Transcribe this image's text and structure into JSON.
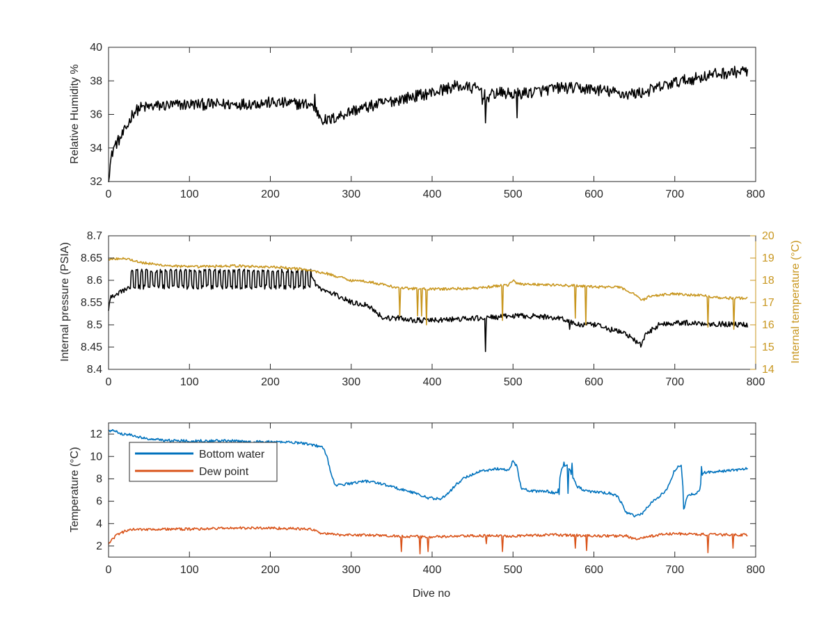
{
  "figure": {
    "xlabel_bottom": "Dive no"
  },
  "colors": {
    "black": "#000000",
    "gold": "#C8961E",
    "blue": "#0072BD",
    "orange": "#D95319",
    "axis": "#262626"
  },
  "chart_data": [
    {
      "type": "line",
      "ylabel": "Relative Humidity %",
      "xlim": [
        0,
        800
      ],
      "ylim": [
        32,
        40
      ],
      "xticks": [
        0,
        100,
        200,
        300,
        400,
        500,
        600,
        700,
        800
      ],
      "yticks": [
        32,
        34,
        36,
        38,
        40
      ],
      "grid": false,
      "series": [
        {
          "color": "#000000",
          "noise": 0.35,
          "points": [
            [
              0,
              32.3
            ],
            [
              3,
              33.3
            ],
            [
              6,
              34.0
            ],
            [
              10,
              34.3
            ],
            [
              15,
              34.6
            ],
            [
              20,
              35.0
            ],
            [
              25,
              35.5
            ],
            [
              30,
              36.1
            ],
            [
              40,
              36.4
            ],
            [
              60,
              36.5
            ],
            [
              100,
              36.6
            ],
            [
              150,
              36.6
            ],
            [
              200,
              36.7
            ],
            [
              250,
              36.6
            ],
            [
              262,
              35.9
            ],
            [
              270,
              35.6
            ],
            [
              280,
              35.8
            ],
            [
              300,
              36.2
            ],
            [
              350,
              36.8
            ],
            [
              400,
              37.3
            ],
            [
              430,
              37.7
            ],
            [
              460,
              37.5
            ],
            [
              467,
              37.0
            ],
            [
              480,
              37.3
            ],
            [
              500,
              37.2
            ],
            [
              520,
              37.3
            ],
            [
              560,
              37.6
            ],
            [
              600,
              37.5
            ],
            [
              640,
              37.2
            ],
            [
              660,
              37.3
            ],
            [
              700,
              37.9
            ],
            [
              720,
              38.1
            ],
            [
              750,
              38.4
            ],
            [
              790,
              38.6
            ]
          ],
          "spikes": [
            [
              265,
              35.4
            ],
            [
              466,
              35.5
            ],
            [
              505,
              35.8
            ],
            [
              462,
              36.6
            ],
            [
              255,
              37.2
            ]
          ]
        }
      ]
    },
    {
      "type": "line",
      "ylabel": "Internal pressure (PSIA)",
      "y2label": "Internal temperature (°C)",
      "xlim": [
        0,
        800
      ],
      "ylim": [
        8.4,
        8.7
      ],
      "y2lim": [
        14,
        20
      ],
      "xticks": [
        0,
        100,
        200,
        300,
        400,
        500,
        600,
        700,
        800
      ],
      "yticks": [
        8.4,
        8.45,
        8.5,
        8.55,
        8.6,
        8.65,
        8.7
      ],
      "y2ticks": [
        14,
        15,
        16,
        17,
        18,
        19,
        20
      ],
      "grid": false,
      "series": [
        {
          "axis": "left",
          "color": "#000000",
          "noise": 0.006,
          "points": [
            [
              0,
              8.53
            ],
            [
              2,
              8.56
            ],
            [
              10,
              8.565
            ],
            [
              20,
              8.58
            ],
            [
              27,
              8.58
            ],
            [
              28,
              8.61
            ],
            [
              40,
              8.61
            ],
            [
              100,
              8.61
            ],
            [
              200,
              8.61
            ],
            [
              250,
              8.61
            ],
            [
              255,
              8.595
            ],
            [
              262,
              8.58
            ],
            [
              270,
              8.575
            ],
            [
              290,
              8.56
            ],
            [
              300,
              8.55
            ],
            [
              320,
              8.545
            ],
            [
              330,
              8.53
            ],
            [
              340,
              8.515
            ],
            [
              360,
              8.515
            ],
            [
              380,
              8.51
            ],
            [
              400,
              8.51
            ],
            [
              460,
              8.515
            ],
            [
              500,
              8.52
            ],
            [
              520,
              8.52
            ],
            [
              560,
              8.515
            ],
            [
              580,
              8.5
            ],
            [
              600,
              8.5
            ],
            [
              620,
              8.49
            ],
            [
              640,
              8.48
            ],
            [
              650,
              8.465
            ],
            [
              658,
              8.455
            ],
            [
              665,
              8.48
            ],
            [
              680,
              8.5
            ],
            [
              700,
              8.505
            ],
            [
              790,
              8.5
            ]
          ],
          "spikes": [
            [
              466,
              8.44
            ],
            [
              658,
              8.45
            ],
            [
              570,
              8.49
            ]
          ],
          "band": {
            "from": 28,
            "to": 250,
            "low": 8.58,
            "high": 8.625,
            "step": 3
          }
        },
        {
          "axis": "right",
          "color": "#C8961E",
          "noise": 0.06,
          "points": [
            [
              0,
              18.95
            ],
            [
              20,
              19.0
            ],
            [
              40,
              18.8
            ],
            [
              60,
              18.7
            ],
            [
              100,
              18.6
            ],
            [
              150,
              18.65
            ],
            [
              200,
              18.6
            ],
            [
              240,
              18.5
            ],
            [
              270,
              18.3
            ],
            [
              290,
              18.1
            ],
            [
              300,
              18.0
            ],
            [
              320,
              17.95
            ],
            [
              340,
              17.8
            ],
            [
              360,
              17.65
            ],
            [
              400,
              17.6
            ],
            [
              460,
              17.65
            ],
            [
              480,
              17.75
            ],
            [
              495,
              17.8
            ],
            [
              500,
              18.0
            ],
            [
              505,
              17.85
            ],
            [
              540,
              17.8
            ],
            [
              580,
              17.75
            ],
            [
              600,
              17.7
            ],
            [
              630,
              17.7
            ],
            [
              650,
              17.4
            ],
            [
              660,
              17.1
            ],
            [
              670,
              17.3
            ],
            [
              700,
              17.4
            ],
            [
              740,
              17.3
            ],
            [
              760,
              17.2
            ],
            [
              790,
              17.2
            ]
          ],
          "spikes": [
            [
              360,
              16.4
            ],
            [
              382,
              16.4
            ],
            [
              387,
              16.4
            ],
            [
              393,
              16.0
            ],
            [
              487,
              16.2
            ],
            [
              577,
              16.3
            ],
            [
              590,
              16.0
            ],
            [
              741,
              15.9
            ],
            [
              773,
              15.8
            ]
          ]
        }
      ]
    },
    {
      "type": "line",
      "ylabel": "Temperature (°C)",
      "xlabel": "Dive no",
      "xlim": [
        0,
        800
      ],
      "ylim": [
        1,
        13
      ],
      "xticks": [
        0,
        100,
        200,
        300,
        400,
        500,
        600,
        700,
        800
      ],
      "yticks": [
        2,
        4,
        6,
        8,
        10,
        12
      ],
      "grid": false,
      "legend": {
        "placement": "top-left",
        "entries": [
          "Bottom water",
          "Dew point"
        ]
      },
      "series": [
        {
          "name": "Bottom water",
          "color": "#0072BD",
          "noise": 0.12,
          "points": [
            [
              0,
              12.3
            ],
            [
              10,
              12.3
            ],
            [
              15,
              12.0
            ],
            [
              30,
              11.9
            ],
            [
              45,
              11.6
            ],
            [
              80,
              11.4
            ],
            [
              120,
              11.4
            ],
            [
              150,
              11.4
            ],
            [
              170,
              11.3
            ],
            [
              200,
              11.3
            ],
            [
              220,
              11.3
            ],
            [
              240,
              11.2
            ],
            [
              255,
              11.0
            ],
            [
              265,
              10.8
            ],
            [
              270,
              10.0
            ],
            [
              275,
              8.5
            ],
            [
              280,
              7.4
            ],
            [
              290,
              7.5
            ],
            [
              300,
              7.6
            ],
            [
              315,
              7.8
            ],
            [
              330,
              7.7
            ],
            [
              345,
              7.4
            ],
            [
              360,
              7.1
            ],
            [
              380,
              6.7
            ],
            [
              395,
              6.3
            ],
            [
              410,
              6.2
            ],
            [
              420,
              6.7
            ],
            [
              430,
              7.5
            ],
            [
              440,
              8.1
            ],
            [
              460,
              8.7
            ],
            [
              480,
              8.9
            ],
            [
              495,
              8.8
            ],
            [
              500,
              9.6
            ],
            [
              505,
              9.1
            ],
            [
              510,
              7.2
            ],
            [
              520,
              6.9
            ],
            [
              540,
              6.9
            ],
            [
              555,
              6.7
            ],
            [
              560,
              8.9
            ],
            [
              567,
              9.3
            ],
            [
              575,
              8.0
            ],
            [
              580,
              7.3
            ],
            [
              590,
              6.9
            ],
            [
              620,
              6.7
            ],
            [
              630,
              6.4
            ],
            [
              640,
              5.0
            ],
            [
              650,
              4.7
            ],
            [
              660,
              4.9
            ],
            [
              670,
              5.8
            ],
            [
              690,
              7.0
            ],
            [
              700,
              8.8
            ],
            [
              708,
              9.3
            ],
            [
              712,
              5.5
            ],
            [
              716,
              6.5
            ],
            [
              730,
              6.8
            ],
            [
              735,
              8.6
            ],
            [
              745,
              8.6
            ],
            [
              760,
              8.7
            ],
            [
              790,
              8.9
            ]
          ],
          "spikes": [
            [
              711,
              5.3
            ],
            [
              557,
              6.6
            ],
            [
              563,
              9.5
            ],
            [
              568,
              6.7
            ],
            [
              573,
              9.4
            ],
            [
              733,
              9.1
            ]
          ]
        },
        {
          "name": "Dew point",
          "color": "#D95319",
          "noise": 0.12,
          "points": [
            [
              0,
              2.1
            ],
            [
              5,
              2.6
            ],
            [
              10,
              3.0
            ],
            [
              20,
              3.3
            ],
            [
              30,
              3.5
            ],
            [
              60,
              3.5
            ],
            [
              100,
              3.5
            ],
            [
              150,
              3.6
            ],
            [
              200,
              3.6
            ],
            [
              250,
              3.5
            ],
            [
              260,
              3.2
            ],
            [
              280,
              3.0
            ],
            [
              300,
              3.0
            ],
            [
              350,
              2.9
            ],
            [
              400,
              2.8
            ],
            [
              450,
              2.9
            ],
            [
              500,
              2.9
            ],
            [
              550,
              3.0
            ],
            [
              600,
              2.9
            ],
            [
              640,
              2.9
            ],
            [
              650,
              2.6
            ],
            [
              660,
              2.7
            ],
            [
              680,
              3.0
            ],
            [
              700,
              3.1
            ],
            [
              750,
              3.0
            ],
            [
              790,
              3.0
            ]
          ],
          "spikes": [
            [
              362,
              1.5
            ],
            [
              385,
              1.3
            ],
            [
              395,
              1.5
            ],
            [
              487,
              1.5
            ],
            [
              577,
              1.8
            ],
            [
              591,
              1.6
            ],
            [
              741,
              1.4
            ],
            [
              772,
              1.8
            ],
            [
              467,
              2.2
            ]
          ]
        }
      ]
    }
  ]
}
